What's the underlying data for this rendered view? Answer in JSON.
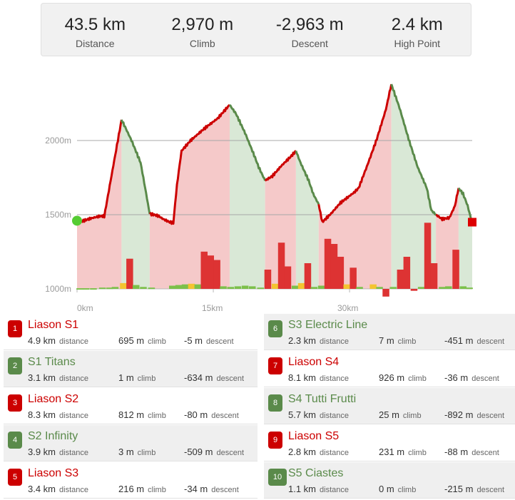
{
  "stats": [
    {
      "value": "43.5 km",
      "label": "Distance"
    },
    {
      "value": "2,970 m",
      "label": "Climb"
    },
    {
      "value": "-2,963 m",
      "label": "Descent"
    },
    {
      "value": "2.4 km",
      "label": "High Point"
    }
  ],
  "chart_data": {
    "type": "area",
    "x_unit": "km",
    "y_unit": "m",
    "y_ticks": [
      "2000m",
      "1500m",
      "1000m"
    ],
    "x_ticks": [
      "0km",
      "15km",
      "30km"
    ],
    "ylim": [
      1000,
      2500
    ],
    "xlim": [
      0,
      43.5
    ],
    "grid": true,
    "colors": {
      "climb": "#cc0000",
      "descent": "#5a8a4a",
      "climb_fill": "#f5c9c9",
      "descent_fill": "#d9e8d6",
      "flat": "#f4c430"
    },
    "elevation_profile": [
      [
        0,
        1445
      ],
      [
        0.5,
        1455
      ],
      [
        1.5,
        1475
      ],
      [
        2.5,
        1490
      ],
      [
        3.0,
        1490
      ],
      [
        4.9,
        2140
      ],
      [
        5.3,
        2090
      ],
      [
        6.0,
        2000
      ],
      [
        7.0,
        1850
      ],
      [
        7.5,
        1680
      ],
      [
        8.0,
        1505
      ],
      [
        8.5,
        1500
      ],
      [
        9.0,
        1490
      ],
      [
        9.5,
        1470
      ],
      [
        10.2,
        1450
      ],
      [
        10.6,
        1445
      ],
      [
        11.0,
        1700
      ],
      [
        11.5,
        1930
      ],
      [
        12.5,
        2000
      ],
      [
        14.0,
        2080
      ],
      [
        15.5,
        2150
      ],
      [
        16.5,
        2220
      ],
      [
        16.8,
        2240
      ],
      [
        17.5,
        2180
      ],
      [
        18.5,
        2050
      ],
      [
        19.5,
        1900
      ],
      [
        20.0,
        1820
      ],
      [
        20.7,
        1730
      ],
      [
        21.5,
        1760
      ],
      [
        22.5,
        1830
      ],
      [
        23.5,
        1890
      ],
      [
        24.1,
        1930
      ],
      [
        24.6,
        1850
      ],
      [
        25.5,
        1730
      ],
      [
        26.0,
        1640
      ],
      [
        26.6,
        1570
      ],
      [
        27.0,
        1450
      ],
      [
        28.0,
        1510
      ],
      [
        29.0,
        1580
      ],
      [
        30.5,
        1650
      ],
      [
        31.0,
        1680
      ],
      [
        32.0,
        1840
      ],
      [
        33.0,
        2010
      ],
      [
        34.0,
        2210
      ],
      [
        34.6,
        2380
      ],
      [
        35.5,
        2220
      ],
      [
        36.5,
        2010
      ],
      [
        37.5,
        1820
      ],
      [
        38.5,
        1680
      ],
      [
        39.0,
        1530
      ],
      [
        39.5,
        1500
      ],
      [
        40.2,
        1470
      ],
      [
        41.0,
        1480
      ],
      [
        41.6,
        1560
      ],
      [
        42.0,
        1680
      ],
      [
        42.5,
        1640
      ],
      [
        43.0,
        1560
      ],
      [
        43.5,
        1440
      ]
    ],
    "bands": [
      {
        "from": 0,
        "to": 4.9,
        "kind": "climb"
      },
      {
        "from": 4.9,
        "to": 8.0,
        "kind": "descent"
      },
      {
        "from": 8.0,
        "to": 16.8,
        "kind": "climb"
      },
      {
        "from": 16.8,
        "to": 20.7,
        "kind": "descent"
      },
      {
        "from": 20.7,
        "to": 24.1,
        "kind": "climb"
      },
      {
        "from": 24.1,
        "to": 26.6,
        "kind": "descent"
      },
      {
        "from": 26.6,
        "to": 34.6,
        "kind": "climb"
      },
      {
        "from": 34.6,
        "to": 39.5,
        "kind": "descent"
      },
      {
        "from": 39.5,
        "to": 42.0,
        "kind": "climb"
      },
      {
        "from": 42.0,
        "to": 43.5,
        "kind": "descent"
      }
    ],
    "bars": [
      {
        "x": 0.3,
        "v": 1
      },
      {
        "x": 1.0,
        "v": 1
      },
      {
        "x": 1.8,
        "v": 1
      },
      {
        "x": 2.8,
        "v": 2
      },
      {
        "x": 3.6,
        "v": 2
      },
      {
        "x": 4.2,
        "v": 3,
        "c": "green"
      },
      {
        "x": 5.1,
        "v": 9,
        "c": "yellow"
      },
      {
        "x": 5.8,
        "v": 47,
        "c": "red"
      },
      {
        "x": 6.5,
        "v": 6,
        "c": "green"
      },
      {
        "x": 7.3,
        "v": 3
      },
      {
        "x": 8.2,
        "v": 2
      },
      {
        "x": 10.5,
        "v": 5
      },
      {
        "x": 11.2,
        "v": 6
      },
      {
        "x": 11.9,
        "v": 7
      },
      {
        "x": 12.6,
        "v": 8,
        "c": "yellow"
      },
      {
        "x": 13.3,
        "v": 7
      },
      {
        "x": 14.0,
        "v": 58,
        "c": "red"
      },
      {
        "x": 14.7,
        "v": 52,
        "c": "red"
      },
      {
        "x": 15.4,
        "v": 45,
        "c": "red"
      },
      {
        "x": 16.1,
        "v": 4
      },
      {
        "x": 16.9,
        "v": 3
      },
      {
        "x": 17.7,
        "v": 4
      },
      {
        "x": 18.5,
        "v": 5
      },
      {
        "x": 19.3,
        "v": 4
      },
      {
        "x": 20.2,
        "v": 2
      },
      {
        "x": 21.0,
        "v": 30,
        "c": "red"
      },
      {
        "x": 21.8,
        "v": 8,
        "c": "yellow"
      },
      {
        "x": 22.5,
        "v": 72,
        "c": "red"
      },
      {
        "x": 23.2,
        "v": 35,
        "c": "red"
      },
      {
        "x": 24.0,
        "v": 5
      },
      {
        "x": 24.7,
        "v": 9,
        "c": "yellow"
      },
      {
        "x": 25.4,
        "v": 40,
        "c": "red"
      },
      {
        "x": 26.1,
        "v": 3
      },
      {
        "x": 26.9,
        "v": 5
      },
      {
        "x": 27.6,
        "v": 78,
        "c": "red"
      },
      {
        "x": 28.3,
        "v": 70,
        "c": "red"
      },
      {
        "x": 29.0,
        "v": 50,
        "c": "red"
      },
      {
        "x": 29.7,
        "v": 7,
        "c": "yellow"
      },
      {
        "x": 30.4,
        "v": 33,
        "c": "red"
      },
      {
        "x": 31.1,
        "v": 3
      },
      {
        "x": 32.6,
        "v": 7,
        "c": "yellow"
      },
      {
        "x": 33.3,
        "v": 3
      },
      {
        "x": 34.0,
        "v": -12,
        "c": "red"
      },
      {
        "x": 34.8,
        "v": 3
      },
      {
        "x": 35.6,
        "v": 30,
        "c": "red"
      },
      {
        "x": 36.3,
        "v": 50,
        "c": "red"
      },
      {
        "x": 37.1,
        "v": -3,
        "c": "red"
      },
      {
        "x": 37.9,
        "v": 3
      },
      {
        "x": 38.6,
        "v": 103,
        "c": "red"
      },
      {
        "x": 39.3,
        "v": 40,
        "c": "red"
      },
      {
        "x": 40.2,
        "v": 3
      },
      {
        "x": 40.9,
        "v": 4
      },
      {
        "x": 41.7,
        "v": 61,
        "c": "red"
      },
      {
        "x": 42.5,
        "v": 4
      },
      {
        "x": 43.2,
        "v": 2
      }
    ],
    "start_marker": {
      "x": 0,
      "y": 1445
    },
    "end_marker": {
      "x": 43.5,
      "y": 1440
    }
  },
  "segments": [
    {
      "num": "1",
      "name": "Liason S1",
      "kind": "climb",
      "distance": "4.9 km",
      "climb": "695 m",
      "descent": "-5 m"
    },
    {
      "num": "2",
      "name": "S1 Titans",
      "kind": "descent",
      "distance": "3.1 km",
      "climb": "1 m",
      "descent": "-634 m"
    },
    {
      "num": "3",
      "name": "Liason S2",
      "kind": "climb",
      "distance": "8.3 km",
      "climb": "812 m",
      "descent": "-80 m"
    },
    {
      "num": "4",
      "name": "S2 Infinity",
      "kind": "descent",
      "distance": "3.9 km",
      "climb": "3 m",
      "descent": "-509 m"
    },
    {
      "num": "5",
      "name": "Liason S3",
      "kind": "climb",
      "distance": "3.4 km",
      "climb": "216 m",
      "descent": "-34 m"
    },
    {
      "num": "6",
      "name": "S3 Electric Line",
      "kind": "descent",
      "distance": "2.3 km",
      "climb": "7 m",
      "descent": "-451 m"
    },
    {
      "num": "7",
      "name": "Liason S4",
      "kind": "climb",
      "distance": "8.1 km",
      "climb": "926 m",
      "descent": "-36 m"
    },
    {
      "num": "8",
      "name": "S4 Tutti Frutti",
      "kind": "descent",
      "distance": "5.7 km",
      "climb": "25 m",
      "descent": "-892 m"
    },
    {
      "num": "9",
      "name": "Liason S5",
      "kind": "climb",
      "distance": "2.8 km",
      "climb": "231 m",
      "descent": "-88 m"
    },
    {
      "num": "10",
      "name": "S5 Ciastes",
      "kind": "descent",
      "distance": "1.1 km",
      "climb": "0 m",
      "descent": "-215 m"
    }
  ],
  "units": {
    "distance": "distance",
    "climb": "climb",
    "descent": "descent"
  }
}
